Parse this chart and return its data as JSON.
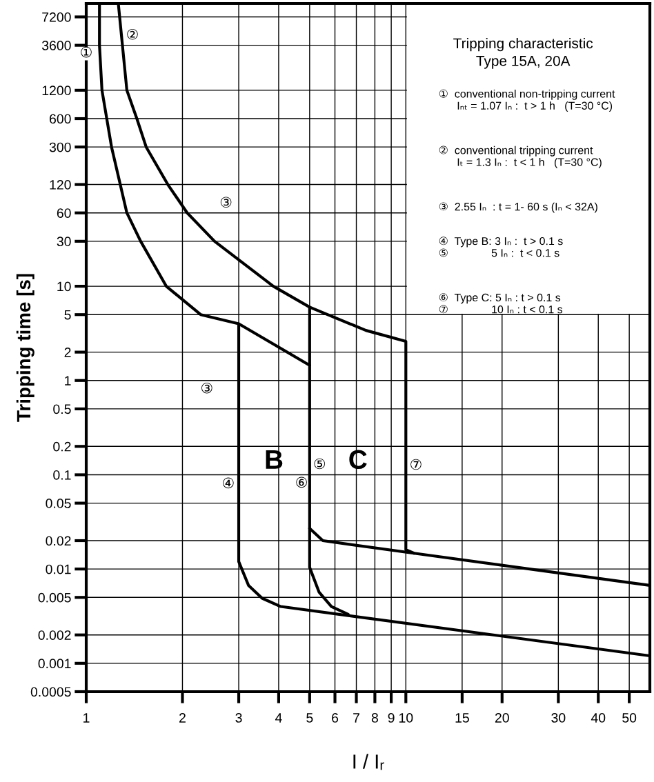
{
  "chart_data": {
    "type": "line",
    "title": "Tripping characteristic\nType 15A, 20A",
    "xlabel": "I / Iᵣ",
    "ylabel": "Tripping time [s]",
    "log": "xy",
    "grid": true,
    "marker": "none",
    "line_style": "solid",
    "xlim": [
      1,
      58
    ],
    "xticks": [
      1,
      2,
      3,
      4,
      5,
      6,
      7,
      8,
      9,
      10,
      15,
      20,
      30,
      40,
      50
    ],
    "ylim": [
      0.0005,
      10000
    ],
    "yticks": [
      0.0005,
      0.001,
      0.002,
      0.005,
      0.01,
      0.02,
      0.05,
      0.1,
      0.2,
      0.5,
      1,
      2,
      5,
      10,
      30,
      60,
      120,
      300,
      600,
      1200,
      3600,
      7200
    ],
    "series": [
      {
        "color": "#000000",
        "x": [
          1.26,
          1.34,
          1.44,
          1.54,
          1.8,
          2.07,
          2.52,
          3.85,
          5.0,
          7.5,
          10,
          10,
          10.6,
          58
        ],
        "values": [
          10000,
          1200,
          600,
          300,
          120,
          60,
          30,
          10,
          6,
          3.4,
          2.6,
          0.016,
          0.0147,
          0.0067
        ]
      },
      {
        "color": "#000000",
        "x": [
          1.1,
          1.1,
          1.12,
          1.2,
          1.34,
          1.48,
          1.78,
          2.28,
          3,
          5
        ],
        "values": [
          10000,
          3600,
          1200,
          300,
          60,
          30,
          10,
          5,
          4,
          1.45
        ]
      },
      {
        "color": "#000000",
        "x": [
          3,
          3,
          3.22,
          3.55,
          4.06,
          58
        ],
        "values": [
          4,
          0.012,
          0.0067,
          0.0049,
          0.004,
          0.0012
        ]
      },
      {
        "color": "#000000",
        "x": [
          5,
          5.5,
          10.6
        ],
        "values": [
          0.027,
          0.02,
          0.0147
        ]
      },
      {
        "color": "#000000",
        "x": [
          5,
          5,
          5.35,
          5.85,
          6.6
        ],
        "values": [
          6,
          0.0104,
          0.0057,
          0.004,
          0.0033
        ]
      }
    ],
    "annotations": [
      "①",
      "②",
      "③",
      "③",
      "④",
      "⑤",
      "⑥",
      "⑦",
      "B",
      "C",
      "①  conventional non-tripping current\n      Iₙₜ = 1.07 Iₙ :  t > 1 h   (T=30 °C)",
      "②  conventional tripping current\n      Iₜ = 1.3 Iₙ :  t < 1 h   (T=30 °C)",
      "③  2.55 Iₙ  : t = 1- 60 s (Iₙ < 32A)",
      "④  Type B: 3 Iₙ :  t > 0.1 s\n⑤              5 Iₙ :  t < 0.1 s",
      "⑥  Type C: 5 Iₙ : t > 0.1 s\n⑦              10 Iₙ : t < 0.1 s"
    ]
  }
}
